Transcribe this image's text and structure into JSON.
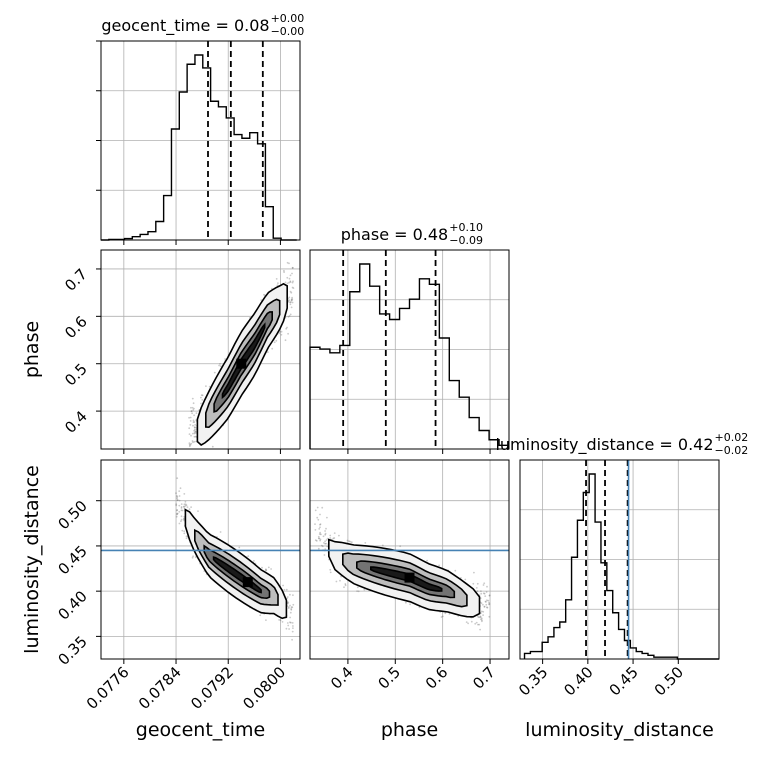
{
  "colors": {
    "truth": "#4682b4",
    "hist": "#000000",
    "contour_fill": [
      "#f2f2f2",
      "#bdbdbd",
      "#737373",
      "#1a1a1a"
    ]
  },
  "chart_data": {
    "type": "corner",
    "parameters": [
      "geocent_time",
      "phase",
      "luminosity_distance"
    ],
    "titles": [
      {
        "prefix": "geocent_time = 0.08",
        "upper": "+0.00",
        "lower": "−0.00"
      },
      {
        "prefix": "phase = 0.48",
        "upper": "+0.10",
        "lower": "−0.09"
      },
      {
        "prefix": "luminosity_distance = 0.42",
        "upper": "+0.02",
        "lower": "−0.02"
      }
    ],
    "ranges": {
      "geocent_time": [
        0.07725,
        0.0803
      ],
      "phase": [
        0.32,
        0.74
      ],
      "luminosity_distance": [
        0.325,
        0.545
      ]
    },
    "ticks": {
      "geocent_time": {
        "values": [
          0.0776,
          0.0784,
          0.0792,
          0.08
        ],
        "labels": [
          "0.0776",
          "0.0784",
          "0.0792",
          "0.0800"
        ]
      },
      "phase": {
        "values": [
          0.4,
          0.5,
          0.6,
          0.7
        ],
        "labels": [
          "0.4",
          "0.5",
          "0.6",
          "0.7"
        ]
      },
      "luminosity_distance": {
        "values": [
          0.35,
          0.4,
          0.45,
          0.5
        ],
        "labels": [
          "0.35",
          "0.40",
          "0.45",
          "0.50"
        ]
      }
    },
    "quantiles": {
      "geocent_time": [
        0.07889,
        0.07924,
        0.07973
      ],
      "phase": [
        0.39,
        0.48,
        0.585
      ],
      "luminosity_distance": [
        0.398,
        0.419,
        0.444
      ]
    },
    "truths": {
      "luminosity_distance": 0.445
    },
    "histograms": {
      "geocent_time": {
        "bin_start": 0.07725,
        "bin_width": 0.00012,
        "heights": [
          0.0,
          0.003,
          0.003,
          0.008,
          0.018,
          0.03,
          0.045,
          0.1,
          0.24,
          0.6,
          0.8,
          0.95,
          1.0,
          0.93,
          0.75,
          0.72,
          0.66,
          0.57,
          0.55,
          0.58,
          0.52,
          0.18,
          0.01,
          0.0,
          0.0
        ]
      },
      "phase": {
        "bin_start": 0.32,
        "bin_width": 0.021,
        "heights": [
          0.55,
          0.54,
          0.52,
          0.56,
          0.85,
          1.0,
          0.88,
          0.73,
          0.7,
          0.76,
          0.81,
          0.92,
          0.89,
          0.6,
          0.37,
          0.28,
          0.17,
          0.1,
          0.05,
          0.02
        ]
      },
      "luminosity_distance": {
        "bin_start": 0.33,
        "bin_width": 0.0065,
        "heights": [
          0.03,
          0.04,
          0.04,
          0.09,
          0.12,
          0.17,
          0.2,
          0.32,
          0.55,
          0.75,
          0.9,
          1.0,
          0.74,
          0.52,
          0.37,
          0.25,
          0.16,
          0.1,
          0.06,
          0.04,
          0.03,
          0.02,
          0.01,
          0.01,
          0.01,
          0.01,
          0.0,
          0.0,
          0.0,
          0.0,
          0.0,
          0.0,
          0.0,
          0.0
        ]
      }
    },
    "correlations": {
      "phase_vs_geocent_time": [
        [
          0.0786,
          0.34
        ],
        [
          0.0788,
          0.37
        ],
        [
          0.079,
          0.41
        ],
        [
          0.0792,
          0.45
        ],
        [
          0.0794,
          0.5
        ],
        [
          0.0796,
          0.54
        ],
        [
          0.0798,
          0.59
        ],
        [
          0.08,
          0.62
        ],
        [
          0.0802,
          0.66
        ]
      ],
      "luminosity_distance_vs_geocent_time": [
        [
          0.0784,
          0.5
        ],
        [
          0.0787,
          0.46
        ],
        [
          0.0789,
          0.44
        ],
        [
          0.0791,
          0.43
        ],
        [
          0.0793,
          0.42
        ],
        [
          0.0795,
          0.41
        ],
        [
          0.0797,
          0.4
        ],
        [
          0.0799,
          0.395
        ],
        [
          0.0801,
          0.38
        ],
        [
          0.0802,
          0.37
        ]
      ],
      "luminosity_distance_vs_phase": [
        [
          0.33,
          0.47
        ],
        [
          0.37,
          0.44
        ],
        [
          0.41,
          0.43
        ],
        [
          0.45,
          0.425
        ],
        [
          0.49,
          0.42
        ],
        [
          0.53,
          0.415
        ],
        [
          0.57,
          0.405
        ],
        [
          0.61,
          0.4
        ],
        [
          0.65,
          0.39
        ],
        [
          0.7,
          0.38
        ]
      ]
    },
    "xlabel_bottom": [
      "geocent_time",
      "phase",
      "luminosity_distance"
    ],
    "ylabel_left": [
      "phase",
      "luminosity_distance"
    ],
    "grid": true
  }
}
